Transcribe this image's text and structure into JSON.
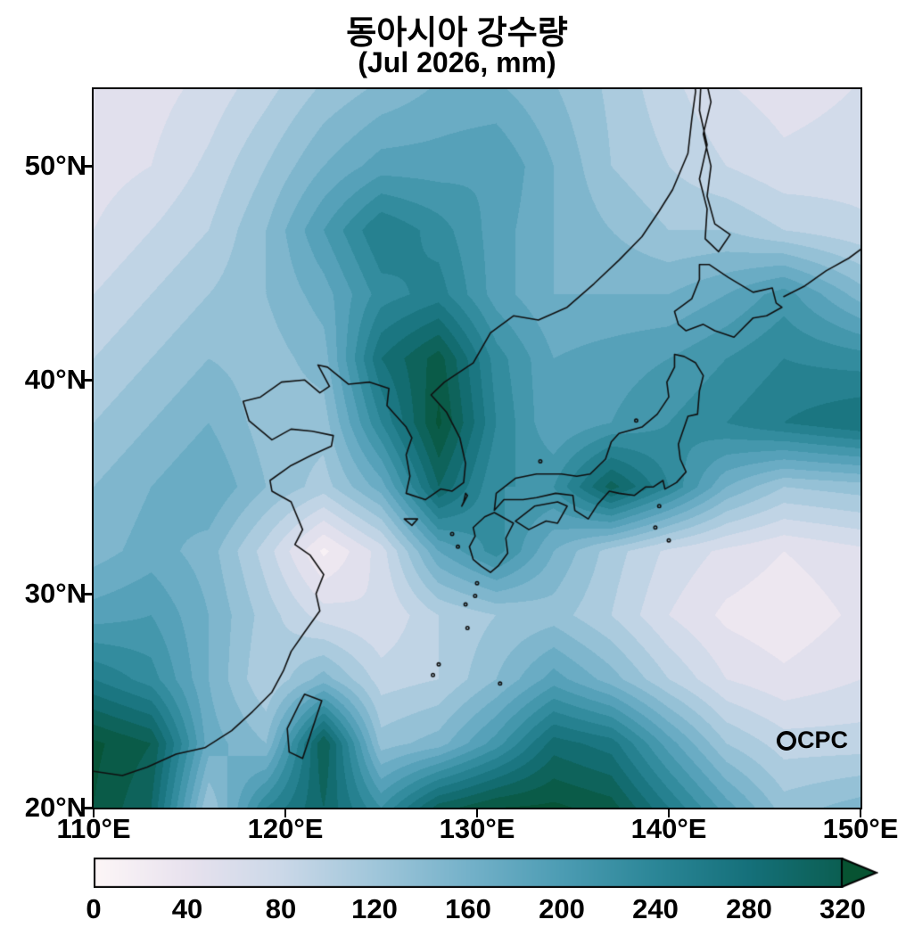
{
  "title": {
    "line1": "동아시아 강수량",
    "line2": "(Jul 2026, mm)"
  },
  "watermark": "CPC",
  "chart_data": {
    "type": "heatmap",
    "title": "동아시아 강수량",
    "subtitle": "(Jul 2026, mm)",
    "unit": "mm",
    "lon_range": [
      110,
      150
    ],
    "lat_range": [
      20,
      53.6
    ],
    "x_ticks": [
      {
        "value": 110,
        "label": "110°E"
      },
      {
        "value": 120,
        "label": "120°E"
      },
      {
        "value": 130,
        "label": "130°E"
      },
      {
        "value": 140,
        "label": "140°E"
      },
      {
        "value": 150,
        "label": "150°E"
      }
    ],
    "y_ticks": [
      {
        "value": 20,
        "label": "20°N"
      },
      {
        "value": 30,
        "label": "30°N"
      },
      {
        "value": 40,
        "label": "40°N"
      },
      {
        "value": 50,
        "label": "50°N"
      }
    ],
    "contour_interval": 20,
    "colormap": [
      {
        "value": 0,
        "color": "#fdf6f7"
      },
      {
        "value": 40,
        "color": "#e8e2ee"
      },
      {
        "value": 80,
        "color": "#cbd8e8"
      },
      {
        "value": 120,
        "color": "#a0c6da"
      },
      {
        "value": 160,
        "color": "#74b1c9"
      },
      {
        "value": 200,
        "color": "#4c9cb3"
      },
      {
        "value": 240,
        "color": "#2b8697"
      },
      {
        "value": 280,
        "color": "#15707a"
      },
      {
        "value": 320,
        "color": "#0b5e51"
      },
      {
        "value": 360,
        "color": "#06512e"
      }
    ],
    "colorbar": {
      "min": 0,
      "max": 320,
      "ticks": [
        0,
        40,
        80,
        120,
        160,
        200,
        240,
        280,
        320
      ],
      "arrow": true
    },
    "grid": {
      "lons": [
        110,
        113,
        116,
        119,
        122,
        125,
        128,
        131,
        134,
        137,
        140,
        143,
        146,
        150
      ],
      "lats": [
        20,
        23,
        26,
        29,
        32,
        35,
        38,
        41,
        44,
        47,
        50,
        54
      ],
      "values": [
        [
          340,
          300,
          120,
          240,
          300,
          220,
          310,
          340,
          345,
          330,
          260,
          190,
          130,
          150
        ],
        [
          345,
          320,
          170,
          140,
          320,
          130,
          150,
          210,
          290,
          270,
          190,
          120,
          90,
          90
        ],
        [
          260,
          230,
          160,
          100,
          150,
          90,
          100,
          140,
          190,
          150,
          100,
          60,
          45,
          60
        ],
        [
          190,
          200,
          160,
          110,
          70,
          60,
          100,
          120,
          130,
          100,
          60,
          35,
          25,
          45
        ],
        [
          150,
          170,
          150,
          90,
          15,
          70,
          180,
          230,
          160,
          110,
          75,
          55,
          40,
          55
        ],
        [
          140,
          160,
          180,
          140,
          110,
          170,
          300,
          220,
          220,
          310,
          240,
          160,
          120,
          130
        ],
        [
          120,
          140,
          160,
          130,
          130,
          240,
          345,
          240,
          180,
          200,
          220,
          240,
          260,
          280
        ],
        [
          100,
          120,
          140,
          130,
          150,
          280,
          330,
          230,
          180,
          190,
          200,
          220,
          240,
          230
        ],
        [
          80,
          100,
          120,
          140,
          170,
          230,
          250,
          190,
          160,
          160,
          160,
          180,
          210,
          150
        ],
        [
          60,
          80,
          100,
          140,
          200,
          260,
          230,
          190,
          160,
          140,
          120,
          120,
          100,
          85
        ],
        [
          50,
          60,
          85,
          120,
          160,
          190,
          190,
          200,
          160,
          120,
          100,
          80,
          65,
          70
        ],
        [
          40,
          50,
          65,
          90,
          120,
          140,
          160,
          160,
          140,
          115,
          85,
          60,
          50,
          60
        ]
      ]
    },
    "coastlines": [
      {
        "name": "mainland-china-korea-russia",
        "closed": false,
        "points": [
          [
            110,
            21.7
          ],
          [
            111.5,
            21.5
          ],
          [
            112.8,
            21.9
          ],
          [
            114.3,
            22.5
          ],
          [
            115.8,
            22.8
          ],
          [
            117.2,
            23.6
          ],
          [
            118.3,
            24.5
          ],
          [
            119.3,
            25.4
          ],
          [
            119.9,
            26.4
          ],
          [
            120.3,
            27.3
          ],
          [
            121.0,
            28.2
          ],
          [
            121.8,
            29.2
          ],
          [
            121.6,
            30.0
          ],
          [
            122.0,
            30.9
          ],
          [
            121.3,
            31.8
          ],
          [
            120.5,
            32.3
          ],
          [
            120.9,
            33.0
          ],
          [
            120.3,
            34.3
          ],
          [
            119.3,
            34.8
          ],
          [
            119.2,
            35.3
          ],
          [
            120.3,
            36.0
          ],
          [
            121.4,
            36.5
          ],
          [
            122.4,
            36.9
          ],
          [
            122.5,
            37.4
          ],
          [
            121.4,
            37.6
          ],
          [
            120.3,
            37.7
          ],
          [
            119.3,
            37.2
          ],
          [
            118.1,
            38.1
          ],
          [
            117.8,
            39.0
          ],
          [
            118.7,
            39.2
          ],
          [
            119.8,
            39.9
          ],
          [
            121.0,
            40.0
          ],
          [
            121.8,
            39.4
          ],
          [
            122.3,
            39.7
          ],
          [
            121.7,
            40.7
          ],
          [
            122.2,
            40.6
          ],
          [
            123.3,
            39.8
          ],
          [
            124.4,
            39.9
          ],
          [
            125.4,
            39.6
          ],
          [
            125.3,
            38.8
          ],
          [
            126.3,
            37.8
          ],
          [
            126.6,
            37.3
          ],
          [
            126.3,
            36.5
          ],
          [
            126.5,
            35.5
          ],
          [
            126.3,
            34.7
          ],
          [
            127.3,
            34.4
          ],
          [
            128.1,
            34.9
          ],
          [
            128.7,
            34.8
          ],
          [
            129.3,
            35.2
          ],
          [
            129.4,
            36.1
          ],
          [
            129.1,
            37.3
          ],
          [
            128.4,
            38.5
          ],
          [
            127.6,
            39.3
          ],
          [
            128.3,
            39.9
          ],
          [
            129.8,
            40.8
          ],
          [
            130.7,
            42.2
          ],
          [
            131.9,
            43.0
          ],
          [
            133.2,
            42.8
          ],
          [
            134.7,
            43.4
          ],
          [
            136.1,
            44.5
          ],
          [
            137.4,
            45.6
          ],
          [
            138.6,
            46.7
          ],
          [
            139.5,
            47.9
          ],
          [
            140.2,
            48.9
          ],
          [
            141.0,
            50.6
          ],
          [
            141.2,
            52.2
          ],
          [
            141.4,
            53.5
          ],
          [
            141.3,
            54.2
          ]
        ]
      },
      {
        "name": "sakhalin",
        "closed": false,
        "points": [
          [
            141.9,
            54.2
          ],
          [
            142.2,
            53.0
          ],
          [
            141.8,
            51.5
          ],
          [
            142.2,
            50.0
          ],
          [
            142.0,
            48.6
          ],
          [
            142.4,
            47.3
          ],
          [
            143.2,
            46.8
          ],
          [
            142.6,
            46.0
          ],
          [
            141.9,
            46.6
          ],
          [
            142.0,
            48.0
          ],
          [
            141.6,
            49.4
          ],
          [
            142.0,
            51.0
          ],
          [
            141.6,
            52.6
          ],
          [
            141.7,
            54.2
          ]
        ]
      },
      {
        "name": "hokkaido",
        "closed": true,
        "points": [
          [
            140.5,
            42.6
          ],
          [
            140.3,
            43.2
          ],
          [
            141.2,
            43.8
          ],
          [
            141.6,
            44.7
          ],
          [
            141.6,
            45.4
          ],
          [
            142.1,
            45.4
          ],
          [
            143.1,
            44.8
          ],
          [
            144.4,
            44.1
          ],
          [
            145.4,
            44.3
          ],
          [
            145.6,
            43.6
          ],
          [
            145.9,
            43.4
          ],
          [
            145.1,
            43.0
          ],
          [
            144.4,
            42.9
          ],
          [
            143.4,
            42.0
          ],
          [
            142.4,
            42.3
          ],
          [
            141.8,
            42.6
          ],
          [
            140.9,
            42.3
          ]
        ]
      },
      {
        "name": "honshu",
        "closed": true,
        "points": [
          [
            130.9,
            33.9
          ],
          [
            131.4,
            34.4
          ],
          [
            132.4,
            34.4
          ],
          [
            133.1,
            34.5
          ],
          [
            134.1,
            34.7
          ],
          [
            135.0,
            34.6
          ],
          [
            135.1,
            33.9
          ],
          [
            135.8,
            33.5
          ],
          [
            136.3,
            34.2
          ],
          [
            136.9,
            34.8
          ],
          [
            137.4,
            34.7
          ],
          [
            138.2,
            34.6
          ],
          [
            138.8,
            35.0
          ],
          [
            139.2,
            35.0
          ],
          [
            139.7,
            35.3
          ],
          [
            139.8,
            34.9
          ],
          [
            140.4,
            35.2
          ],
          [
            140.9,
            35.7
          ],
          [
            140.6,
            36.3
          ],
          [
            140.5,
            37.0
          ],
          [
            141.0,
            38.3
          ],
          [
            141.5,
            38.4
          ],
          [
            141.6,
            39.5
          ],
          [
            141.8,
            40.2
          ],
          [
            141.4,
            40.8
          ],
          [
            140.8,
            41.1
          ],
          [
            140.3,
            41.2
          ],
          [
            140.3,
            40.6
          ],
          [
            139.9,
            39.9
          ],
          [
            140.0,
            39.2
          ],
          [
            139.4,
            38.4
          ],
          [
            138.6,
            37.8
          ],
          [
            137.4,
            37.5
          ],
          [
            137.0,
            37.1
          ],
          [
            136.7,
            36.3
          ],
          [
            135.9,
            35.6
          ],
          [
            135.2,
            35.5
          ],
          [
            134.4,
            35.6
          ],
          [
            133.1,
            35.6
          ],
          [
            132.0,
            35.4
          ],
          [
            131.0,
            34.7
          ]
        ]
      },
      {
        "name": "kyushu",
        "closed": true,
        "points": [
          [
            130.2,
            31.3
          ],
          [
            129.8,
            31.6
          ],
          [
            129.6,
            32.2
          ],
          [
            129.9,
            32.7
          ],
          [
            129.8,
            33.1
          ],
          [
            130.4,
            33.6
          ],
          [
            130.9,
            33.8
          ],
          [
            131.3,
            33.6
          ],
          [
            131.9,
            33.3
          ],
          [
            131.5,
            32.6
          ],
          [
            131.6,
            31.9
          ],
          [
            131.1,
            31.3
          ],
          [
            130.7,
            31.0
          ]
        ]
      },
      {
        "name": "shikoku",
        "closed": true,
        "points": [
          [
            132.0,
            33.4
          ],
          [
            132.7,
            33.0
          ],
          [
            133.6,
            33.4
          ],
          [
            134.2,
            33.3
          ],
          [
            134.7,
            34.1
          ],
          [
            134.2,
            34.3
          ],
          [
            133.0,
            34.1
          ]
        ]
      },
      {
        "name": "taiwan",
        "closed": true,
        "points": [
          [
            121.0,
            25.3
          ],
          [
            121.9,
            25.0
          ],
          [
            121.6,
            24.2
          ],
          [
            120.9,
            22.3
          ],
          [
            120.2,
            22.6
          ],
          [
            120.1,
            23.7
          ],
          [
            120.7,
            24.8
          ]
        ]
      },
      {
        "name": "jeju",
        "closed": true,
        "points": [
          [
            126.2,
            33.5
          ],
          [
            126.9,
            33.5
          ],
          [
            126.6,
            33.2
          ]
        ]
      },
      {
        "name": "tsushima",
        "closed": true,
        "points": [
          [
            129.2,
            34.1
          ],
          [
            129.5,
            34.6
          ],
          [
            129.4,
            34.7
          ],
          [
            129.3,
            34.3
          ]
        ]
      },
      {
        "name": "kuril-chain",
        "closed": false,
        "points": [
          [
            146.0,
            43.9
          ],
          [
            147.1,
            44.4
          ],
          [
            148.2,
            45.1
          ],
          [
            149.4,
            45.7
          ],
          [
            150.0,
            46.1
          ]
        ]
      },
      {
        "name": "small-islands",
        "dots": true,
        "points": [
          [
            128.7,
            32.8
          ],
          [
            129.0,
            32.2
          ],
          [
            130.0,
            30.5
          ],
          [
            129.9,
            29.9
          ],
          [
            129.5,
            28.4
          ],
          [
            128.0,
            26.7
          ],
          [
            127.7,
            26.2
          ],
          [
            131.2,
            25.8
          ],
          [
            139.5,
            34.1
          ],
          [
            139.3,
            33.1
          ],
          [
            140.0,
            32.5
          ],
          [
            138.3,
            38.1
          ],
          [
            133.3,
            36.2
          ],
          [
            129.4,
            29.5
          ]
        ]
      }
    ]
  }
}
